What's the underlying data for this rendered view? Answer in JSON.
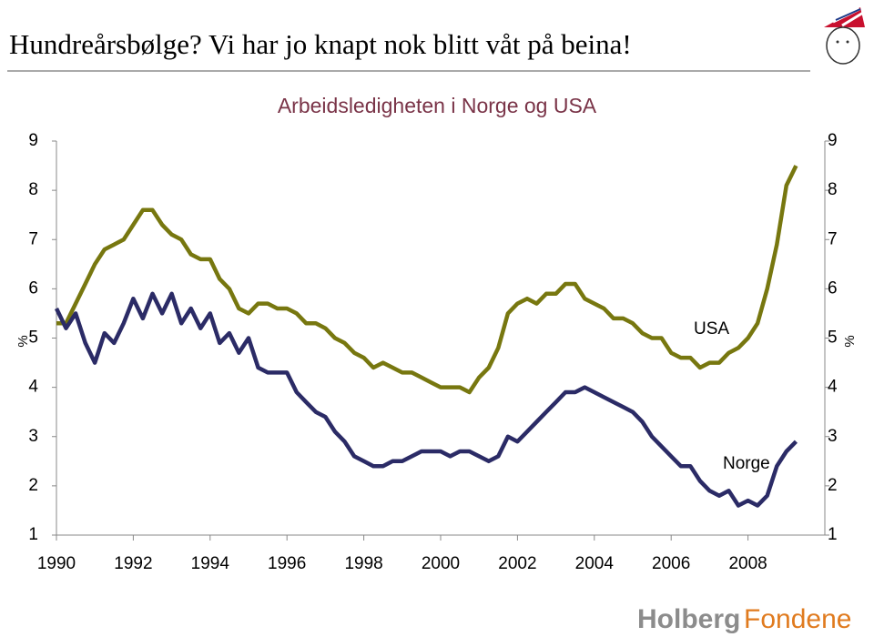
{
  "header": {
    "title": "Hundreårsbølge? Vi har jo knapt nok blitt våt på beina!"
  },
  "logo": {
    "first": "Holberg",
    "second": "Fondene"
  },
  "chart_data": {
    "type": "line",
    "title": "Arbeidsledigheten i Norge og USA",
    "ylabel": "%",
    "y2label": "%",
    "xlim": [
      1990,
      2010
    ],
    "xticks": [
      1990,
      1992,
      1994,
      1996,
      1998,
      2000,
      2002,
      2004,
      2006,
      2008
    ],
    "ylim": [
      1,
      9
    ],
    "yticks": [
      1,
      2,
      3,
      4,
      5,
      6,
      7,
      8,
      9
    ],
    "y2lim": [
      1,
      9
    ],
    "y2ticks": [
      1,
      2,
      3,
      4,
      5,
      6,
      7,
      8,
      9
    ],
    "grid": false,
    "x": [
      1990,
      1990.25,
      1990.5,
      1990.75,
      1991,
      1991.25,
      1991.5,
      1991.75,
      1992,
      1992.25,
      1992.5,
      1992.75,
      1993,
      1993.25,
      1993.5,
      1993.75,
      1994,
      1994.25,
      1994.5,
      1994.75,
      1995,
      1995.25,
      1995.5,
      1995.75,
      1996,
      1996.25,
      1996.5,
      1996.75,
      1997,
      1997.25,
      1997.5,
      1997.75,
      1998,
      1998.25,
      1998.5,
      1998.75,
      1999,
      1999.25,
      1999.5,
      1999.75,
      2000,
      2000.25,
      2000.5,
      2000.75,
      2001,
      2001.25,
      2001.5,
      2001.75,
      2002,
      2002.25,
      2002.5,
      2002.75,
      2003,
      2003.25,
      2003.5,
      2003.75,
      2004,
      2004.25,
      2004.5,
      2004.75,
      2005,
      2005.25,
      2005.5,
      2005.75,
      2006,
      2006.25,
      2006.5,
      2006.75,
      2007,
      2007.25,
      2007.5,
      2007.75,
      2008,
      2008.25,
      2008.5,
      2008.75,
      2009,
      2009.25
    ],
    "series": [
      {
        "name": "USA",
        "color": "#77770f",
        "values": [
          5.3,
          5.3,
          5.7,
          6.1,
          6.5,
          6.8,
          6.9,
          7.0,
          7.3,
          7.6,
          7.6,
          7.3,
          7.1,
          7.0,
          6.7,
          6.6,
          6.6,
          6.2,
          6.0,
          5.6,
          5.5,
          5.7,
          5.7,
          5.6,
          5.6,
          5.5,
          5.3,
          5.3,
          5.2,
          5.0,
          4.9,
          4.7,
          4.6,
          4.4,
          4.5,
          4.4,
          4.3,
          4.3,
          4.2,
          4.1,
          4.0,
          4.0,
          4.0,
          3.9,
          4.2,
          4.4,
          4.8,
          5.5,
          5.7,
          5.8,
          5.7,
          5.9,
          5.9,
          6.1,
          6.1,
          5.8,
          5.7,
          5.6,
          5.4,
          5.4,
          5.3,
          5.1,
          5.0,
          5.0,
          4.7,
          4.6,
          4.6,
          4.4,
          4.5,
          4.5,
          4.7,
          4.8,
          5.0,
          5.3,
          6.0,
          6.9,
          8.1,
          8.5
        ]
      },
      {
        "name": "Norge",
        "color": "#2b2b66",
        "values": [
          5.6,
          5.2,
          5.5,
          4.9,
          4.5,
          5.1,
          4.9,
          5.3,
          5.8,
          5.4,
          5.9,
          5.5,
          5.9,
          5.3,
          5.6,
          5.2,
          5.5,
          4.9,
          5.1,
          4.7,
          5.0,
          4.4,
          4.3,
          4.3,
          4.3,
          3.9,
          3.7,
          3.5,
          3.4,
          3.1,
          2.9,
          2.6,
          2.5,
          2.4,
          2.4,
          2.5,
          2.5,
          2.6,
          2.7,
          2.7,
          2.7,
          2.6,
          2.7,
          2.7,
          2.6,
          2.5,
          2.6,
          3.0,
          2.9,
          3.1,
          3.3,
          3.5,
          3.7,
          3.9,
          3.9,
          4.0,
          3.9,
          3.8,
          3.7,
          3.6,
          3.5,
          3.3,
          3.0,
          2.8,
          2.6,
          2.4,
          2.4,
          2.1,
          1.9,
          1.8,
          1.9,
          1.6,
          1.7,
          1.6,
          1.8,
          2.4,
          2.7,
          2.9
        ]
      }
    ]
  }
}
